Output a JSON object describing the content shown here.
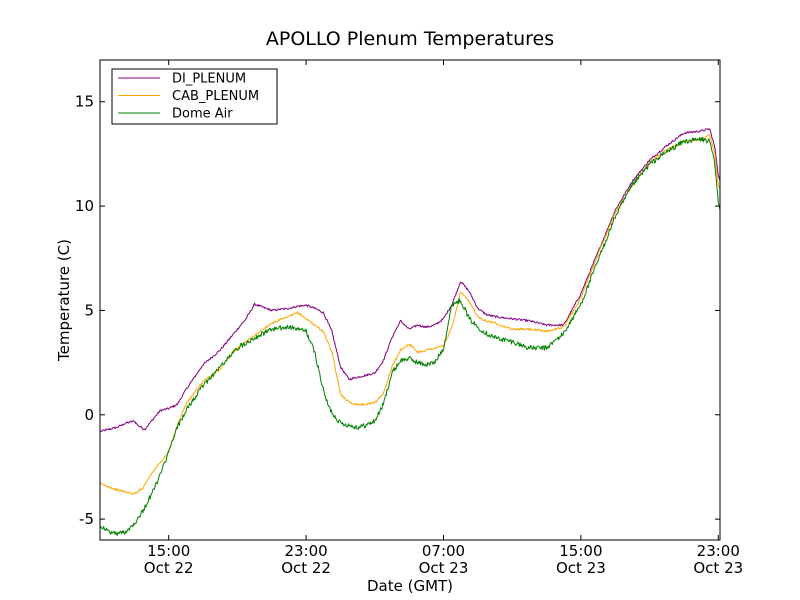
{
  "chart_data": {
    "type": "line",
    "title": "APOLLO Plenum Temperatures",
    "xlabel": "Date (GMT)",
    "ylabel": "Temperature (C)",
    "x_unit": "hours since Oct 22 11:00 GMT",
    "xlim": [
      0,
      36.1
    ],
    "ylim": [
      -6,
      17
    ],
    "grid": false,
    "legend_position": "top-left",
    "x_ticks": [
      {
        "value": 4,
        "time": "15:00",
        "date": "Oct 22"
      },
      {
        "value": 12,
        "time": "23:00",
        "date": "Oct 22"
      },
      {
        "value": 20,
        "time": "07:00",
        "date": "Oct 23"
      },
      {
        "value": 28,
        "time": "15:00",
        "date": "Oct 23"
      },
      {
        "value": 36,
        "time": "23:00",
        "date": "Oct 23"
      }
    ],
    "y_ticks": [
      {
        "value": -5,
        "label": "-5"
      },
      {
        "value": 0,
        "label": "0"
      },
      {
        "value": 5,
        "label": "5"
      },
      {
        "value": 10,
        "label": "10"
      },
      {
        "value": 15,
        "label": "15"
      }
    ],
    "series": [
      {
        "name": "DI_PLENUM",
        "color": "#800080",
        "noise": 0.05,
        "x": [
          0,
          1,
          1.5,
          2,
          2.2,
          2.6,
          3,
          3.5,
          4,
          4.5,
          5,
          6,
          7,
          8,
          8.5,
          9,
          10,
          11,
          11.5,
          12,
          12.5,
          13,
          13.5,
          14,
          14.5,
          15,
          15.5,
          16,
          16.5,
          17,
          17.5,
          18,
          18.5,
          19,
          19.5,
          20,
          20.5,
          21,
          21.5,
          22,
          22.5,
          23,
          24,
          25,
          26,
          27,
          28,
          29,
          30,
          31,
          32,
          33,
          34,
          35,
          35.5,
          35.8,
          36,
          36.1
        ],
        "y": [
          -0.8,
          -0.6,
          -0.4,
          -0.3,
          -0.5,
          -0.7,
          -0.3,
          0.2,
          0.3,
          0.5,
          1.2,
          2.4,
          3.1,
          4.1,
          4.6,
          5.3,
          5.0,
          5.1,
          5.2,
          5.25,
          5.1,
          4.9,
          4.0,
          2.3,
          1.7,
          1.8,
          1.9,
          2.0,
          2.6,
          3.7,
          4.5,
          4.1,
          4.3,
          4.2,
          4.3,
          4.6,
          5.3,
          6.4,
          5.9,
          5.1,
          4.8,
          4.7,
          4.6,
          4.5,
          4.3,
          4.3,
          5.8,
          7.8,
          9.8,
          11.2,
          12.2,
          12.9,
          13.5,
          13.6,
          13.7,
          12.8,
          11.5,
          11.2
        ]
      },
      {
        "name": "CAB_PLENUM",
        "color": "#ffa500",
        "noise": 0.05,
        "x": [
          0,
          1,
          1.5,
          2,
          2.5,
          3,
          3.5,
          4,
          4.5,
          5,
          6,
          7,
          8,
          9,
          10,
          11,
          11.5,
          12,
          12.5,
          13,
          13.5,
          14,
          14.5,
          15,
          15.5,
          16,
          16.5,
          17,
          17.5,
          18,
          18.5,
          19,
          19.5,
          20,
          20.5,
          21,
          21.5,
          22,
          22.5,
          23,
          24,
          25,
          26,
          27,
          28,
          29,
          30,
          31,
          32,
          33,
          34,
          35,
          35.5,
          35.8,
          36,
          36.1
        ],
        "y": [
          -3.3,
          -3.6,
          -3.7,
          -3.8,
          -3.5,
          -2.8,
          -2.3,
          -1.8,
          -0.5,
          0.5,
          1.6,
          2.2,
          3.2,
          3.8,
          4.4,
          4.7,
          4.9,
          4.6,
          4.3,
          4.0,
          3.0,
          1.0,
          0.6,
          0.5,
          0.5,
          0.6,
          1.0,
          2.3,
          3.1,
          3.4,
          3.0,
          3.1,
          3.2,
          3.3,
          4.2,
          5.9,
          5.4,
          4.7,
          4.5,
          4.4,
          4.1,
          4.1,
          4.0,
          4.2,
          5.6,
          7.7,
          9.7,
          11.0,
          12.1,
          12.7,
          13.1,
          13.2,
          13.4,
          12.5,
          11.0,
          10.8
        ]
      },
      {
        "name": "Dome Air",
        "color": "#008000",
        "noise": 0.12,
        "x": [
          0,
          0.5,
          1,
          1.5,
          2,
          2.5,
          3,
          3.5,
          4,
          4.5,
          5,
          6,
          7,
          8,
          9,
          10,
          11,
          11.5,
          12,
          12.5,
          13,
          13.3,
          13.6,
          14,
          14.5,
          15,
          15.5,
          16,
          16.5,
          17,
          17.5,
          18,
          18.5,
          19,
          19.5,
          20,
          20.5,
          21,
          21.5,
          22,
          22.5,
          23,
          24,
          25,
          26,
          27,
          28,
          29,
          30,
          31,
          32,
          33,
          34,
          35,
          35.5,
          35.8,
          36,
          36.1
        ],
        "y": [
          -5.3,
          -5.6,
          -5.7,
          -5.6,
          -5.2,
          -4.6,
          -3.8,
          -2.9,
          -1.8,
          -0.6,
          0.2,
          1.4,
          2.3,
          3.2,
          3.7,
          4.1,
          4.2,
          4.1,
          4.0,
          3.0,
          1.2,
          0.4,
          0.0,
          -0.4,
          -0.5,
          -0.6,
          -0.5,
          -0.3,
          0.5,
          2.0,
          2.6,
          2.7,
          2.5,
          2.4,
          2.5,
          3.2,
          5.3,
          5.5,
          4.6,
          4.2,
          3.9,
          3.7,
          3.5,
          3.2,
          3.2,
          3.9,
          5.3,
          7.4,
          9.5,
          11.0,
          12.0,
          12.6,
          13.1,
          13.2,
          13.1,
          12.0,
          10.2,
          9.8
        ]
      }
    ]
  }
}
